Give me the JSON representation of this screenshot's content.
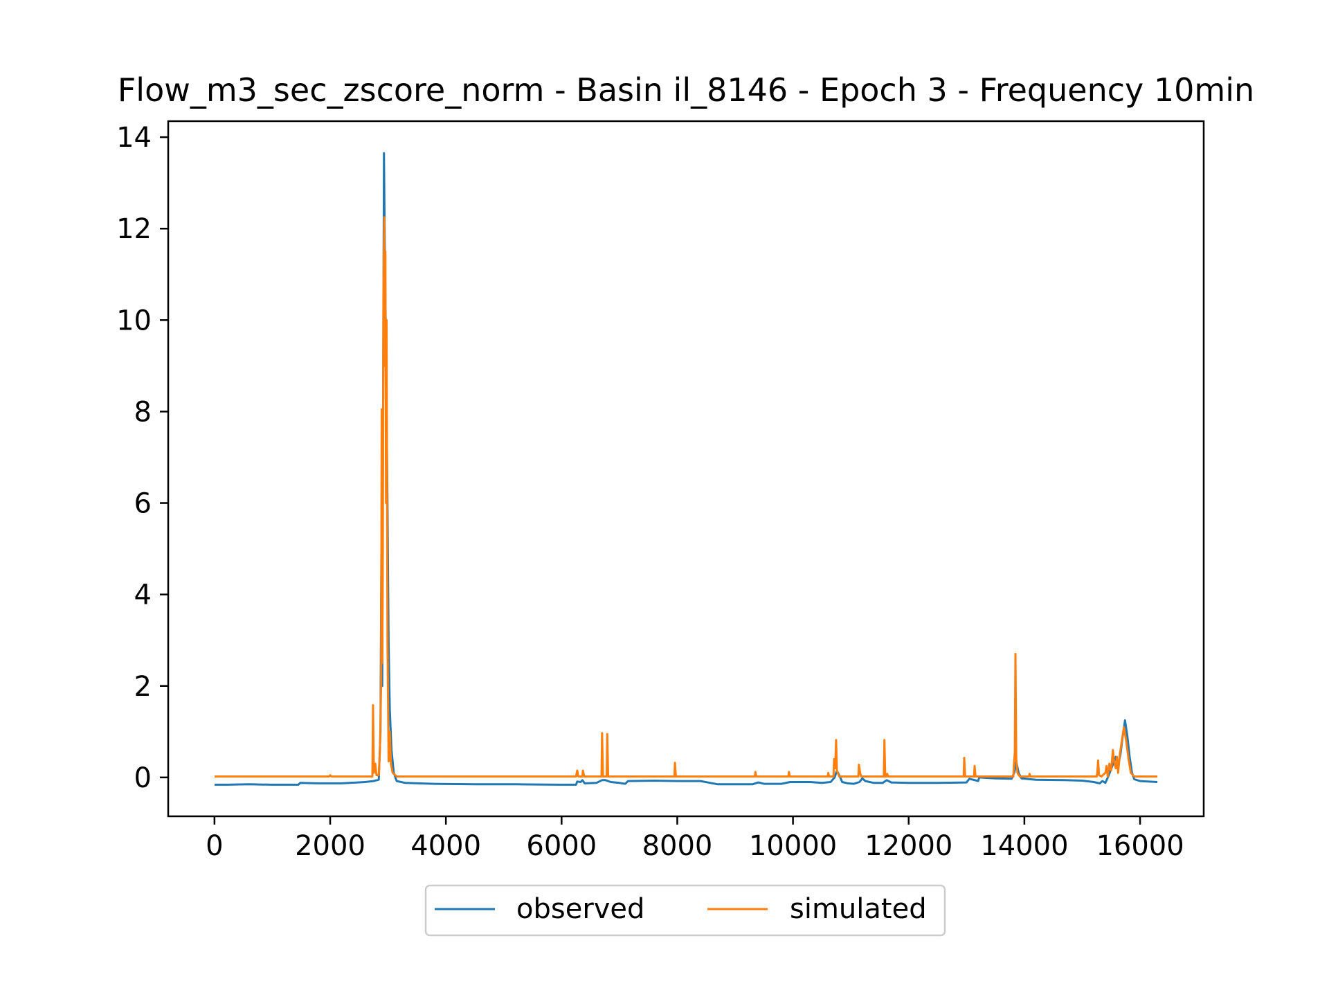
{
  "chart_data": {
    "type": "line",
    "title": "Flow_m3_sec_zscore_norm - Basin il_8146 - Epoch 3 - Frequency 10min",
    "xlabel": "",
    "ylabel": "",
    "xlim": [
      -800,
      17100
    ],
    "ylim": [
      -0.85,
      14.35
    ],
    "x_ticks": [
      0,
      2000,
      4000,
      6000,
      8000,
      10000,
      12000,
      14000,
      16000
    ],
    "y_ticks": [
      0,
      2,
      4,
      6,
      8,
      10,
      12,
      14
    ],
    "grid": false,
    "legend_position": "bottom-center",
    "series": [
      {
        "name": "observed",
        "color": "#1f77b4",
        "points": [
          [
            0,
            -0.16
          ],
          [
            200,
            -0.16
          ],
          [
            600,
            -0.15
          ],
          [
            1000,
            -0.16
          ],
          [
            1450,
            -0.16
          ],
          [
            1480,
            -0.12
          ],
          [
            1800,
            -0.13
          ],
          [
            2200,
            -0.13
          ],
          [
            2600,
            -0.1
          ],
          [
            2750,
            -0.08
          ],
          [
            2840,
            -0.05
          ],
          [
            2870,
            1.0
          ],
          [
            2885,
            4.95
          ],
          [
            2900,
            2.0
          ],
          [
            2915,
            8.0
          ],
          [
            2930,
            13.65
          ],
          [
            2945,
            11.5
          ],
          [
            2960,
            10.0
          ],
          [
            2975,
            8.0
          ],
          [
            2990,
            6.0
          ],
          [
            3010,
            3.0
          ],
          [
            3030,
            1.5
          ],
          [
            3060,
            0.6
          ],
          [
            3100,
            0.1
          ],
          [
            3150,
            -0.08
          ],
          [
            3300,
            -0.12
          ],
          [
            3800,
            -0.14
          ],
          [
            4500,
            -0.15
          ],
          [
            5200,
            -0.15
          ],
          [
            6000,
            -0.16
          ],
          [
            6250,
            -0.16
          ],
          [
            6270,
            -0.09
          ],
          [
            6330,
            -0.1
          ],
          [
            6360,
            -0.06
          ],
          [
            6400,
            -0.13
          ],
          [
            6600,
            -0.12
          ],
          [
            6700,
            -0.06
          ],
          [
            6760,
            -0.06
          ],
          [
            6850,
            -0.1
          ],
          [
            7000,
            -0.12
          ],
          [
            7100,
            -0.14
          ],
          [
            7150,
            -0.08
          ],
          [
            7600,
            -0.07
          ],
          [
            8000,
            -0.08
          ],
          [
            8400,
            -0.08
          ],
          [
            8700,
            -0.15
          ],
          [
            9300,
            -0.15
          ],
          [
            9400,
            -0.11
          ],
          [
            9500,
            -0.14
          ],
          [
            9800,
            -0.14
          ],
          [
            9950,
            -0.1
          ],
          [
            10300,
            -0.1
          ],
          [
            10500,
            -0.12
          ],
          [
            10650,
            -0.1
          ],
          [
            10720,
            0.0
          ],
          [
            10760,
            0.15
          ],
          [
            10800,
            0.05
          ],
          [
            10850,
            -0.1
          ],
          [
            10950,
            -0.13
          ],
          [
            11050,
            -0.14
          ],
          [
            11150,
            -0.1
          ],
          [
            11200,
            -0.02
          ],
          [
            11250,
            -0.08
          ],
          [
            11400,
            -0.12
          ],
          [
            11550,
            -0.12
          ],
          [
            11620,
            -0.06
          ],
          [
            11700,
            -0.11
          ],
          [
            12000,
            -0.12
          ],
          [
            12500,
            -0.12
          ],
          [
            13000,
            -0.11
          ],
          [
            13050,
            -0.03
          ],
          [
            13200,
            -0.08
          ],
          [
            13220,
            0.0
          ],
          [
            13500,
            -0.02
          ],
          [
            13780,
            -0.03
          ],
          [
            13830,
            0.12
          ],
          [
            13860,
            0.35
          ],
          [
            13900,
            0.1
          ],
          [
            13950,
            -0.02
          ],
          [
            14200,
            -0.05
          ],
          [
            14700,
            -0.06
          ],
          [
            15000,
            -0.07
          ],
          [
            15200,
            -0.1
          ],
          [
            15300,
            -0.13
          ],
          [
            15350,
            -0.08
          ],
          [
            15400,
            -0.12
          ],
          [
            15460,
            0.05
          ],
          [
            15520,
            0.25
          ],
          [
            15580,
            0.45
          ],
          [
            15620,
            0.25
          ],
          [
            15660,
            0.5
          ],
          [
            15700,
            0.9
          ],
          [
            15740,
            1.25
          ],
          [
            15780,
            0.9
          ],
          [
            15820,
            0.45
          ],
          [
            15860,
            0.1
          ],
          [
            15900,
            -0.04
          ],
          [
            16000,
            -0.08
          ],
          [
            16300,
            -0.1
          ]
        ]
      },
      {
        "name": "simulated",
        "color": "#ff7f0e",
        "points": [
          [
            0,
            0.02
          ],
          [
            1980,
            0.02
          ],
          [
            2000,
            0.05
          ],
          [
            2020,
            0.02
          ],
          [
            2730,
            0.02
          ],
          [
            2740,
            1.58
          ],
          [
            2755,
            0.1
          ],
          [
            2780,
            0.3
          ],
          [
            2800,
            0.05
          ],
          [
            2840,
            0.05
          ],
          [
            2860,
            0.6
          ],
          [
            2880,
            2.0
          ],
          [
            2890,
            8.05
          ],
          [
            2900,
            2.5
          ],
          [
            2910,
            5.0
          ],
          [
            2920,
            10.5
          ],
          [
            2935,
            12.25
          ],
          [
            2945,
            9.0
          ],
          [
            2955,
            11.5
          ],
          [
            2965,
            6.0
          ],
          [
            2975,
            10.0
          ],
          [
            2990,
            3.0
          ],
          [
            3010,
            0.35
          ],
          [
            3030,
            1.0
          ],
          [
            3050,
            0.3
          ],
          [
            3080,
            0.1
          ],
          [
            3150,
            0.02
          ],
          [
            6250,
            0.02
          ],
          [
            6270,
            0.15
          ],
          [
            6290,
            0.02
          ],
          [
            6360,
            0.02
          ],
          [
            6370,
            0.15
          ],
          [
            6390,
            0.02
          ],
          [
            6690,
            0.02
          ],
          [
            6700,
            0.97
          ],
          [
            6715,
            0.02
          ],
          [
            6780,
            0.02
          ],
          [
            6790,
            0.95
          ],
          [
            6805,
            0.02
          ],
          [
            7950,
            0.02
          ],
          [
            7960,
            0.32
          ],
          [
            7975,
            0.02
          ],
          [
            9340,
            0.02
          ],
          [
            9350,
            0.12
          ],
          [
            9365,
            0.02
          ],
          [
            9920,
            0.02
          ],
          [
            9930,
            0.12
          ],
          [
            9945,
            0.02
          ],
          [
            10600,
            0.02
          ],
          [
            10610,
            0.1
          ],
          [
            10625,
            0.02
          ],
          [
            10700,
            0.02
          ],
          [
            10710,
            0.4
          ],
          [
            10730,
            0.2
          ],
          [
            10745,
            0.82
          ],
          [
            10760,
            0.15
          ],
          [
            10800,
            0.02
          ],
          [
            11130,
            0.02
          ],
          [
            11140,
            0.28
          ],
          [
            11160,
            0.1
          ],
          [
            11180,
            0.02
          ],
          [
            11570,
            0.02
          ],
          [
            11580,
            0.82
          ],
          [
            11595,
            0.02
          ],
          [
            11620,
            0.02
          ],
          [
            11630,
            0.08
          ],
          [
            11645,
            0.02
          ],
          [
            12950,
            0.02
          ],
          [
            12960,
            0.43
          ],
          [
            12975,
            0.02
          ],
          [
            13130,
            0.02
          ],
          [
            13140,
            0.25
          ],
          [
            13155,
            0.02
          ],
          [
            13810,
            0.02
          ],
          [
            13820,
            0.3
          ],
          [
            13835,
            0.55
          ],
          [
            13845,
            2.7
          ],
          [
            13860,
            0.4
          ],
          [
            13880,
            0.1
          ],
          [
            13920,
            0.02
          ],
          [
            14080,
            0.02
          ],
          [
            14090,
            0.08
          ],
          [
            14105,
            0.02
          ],
          [
            15250,
            0.02
          ],
          [
            15260,
            0.1
          ],
          [
            15275,
            0.37
          ],
          [
            15290,
            0.05
          ],
          [
            15330,
            0.02
          ],
          [
            15400,
            0.1
          ],
          [
            15420,
            0.25
          ],
          [
            15440,
            0.02
          ],
          [
            15470,
            0.3
          ],
          [
            15500,
            0.15
          ],
          [
            15530,
            0.6
          ],
          [
            15550,
            0.35
          ],
          [
            15580,
            0.2
          ],
          [
            15600,
            0.45
          ],
          [
            15620,
            0.1
          ],
          [
            15650,
            0.5
          ],
          [
            15690,
            0.85
          ],
          [
            15720,
            1.1
          ],
          [
            15760,
            0.8
          ],
          [
            15800,
            0.4
          ],
          [
            15840,
            0.1
          ],
          [
            15900,
            0.02
          ],
          [
            16300,
            0.02
          ]
        ]
      }
    ]
  }
}
